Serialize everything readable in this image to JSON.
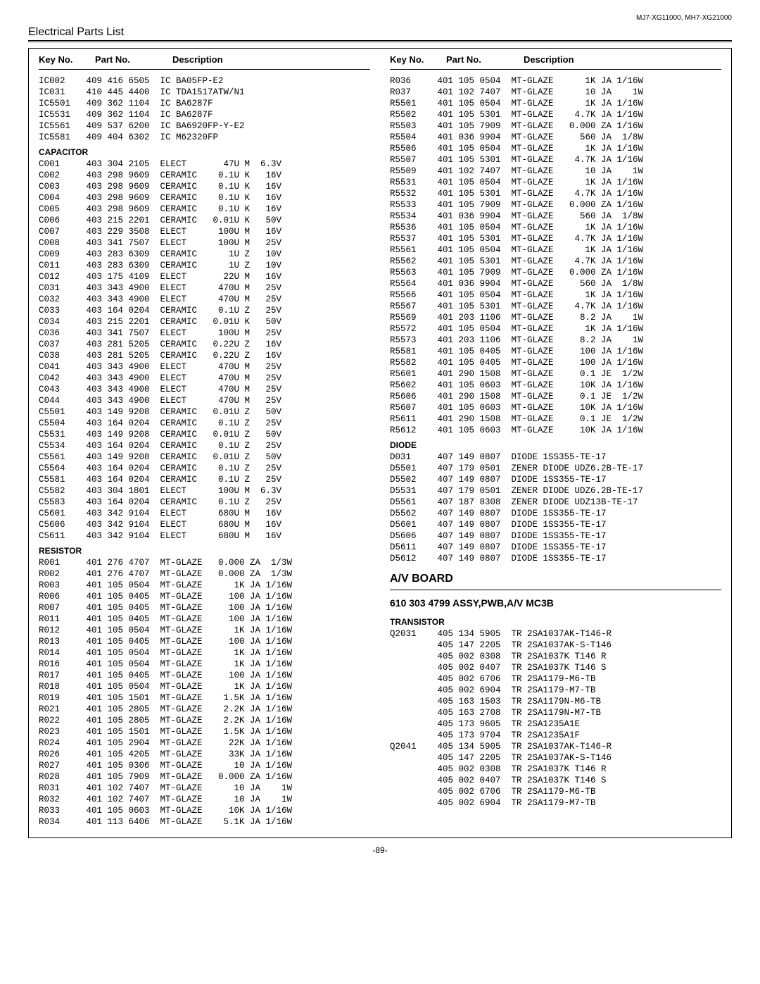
{
  "header_models": "MJ7-XG11000, MH7-XG21000",
  "page_title": "Electrical Parts List",
  "col_headers": {
    "key": "Key No.",
    "part": "Part No.",
    "desc": "Description"
  },
  "left": {
    "top_rows": [
      [
        "IC002",
        "409 416 6505",
        "IC BA05FP-E2"
      ],
      [
        "IC031",
        "410 445 4400",
        "IC TDA1517ATW/N1"
      ],
      [
        "IC5501",
        "409 362 1104",
        "IC BA6287F"
      ],
      [
        "IC5531",
        "409 362 1104",
        "IC BA6287F"
      ],
      [
        "IC5561",
        "409 537 6200",
        "IC BA6920FP-Y-E2"
      ],
      [
        "IC5581",
        "409 404 6302",
        "IC M62320FP"
      ]
    ],
    "cap_label": "CAPACITOR",
    "cap_rows": [
      [
        "C001",
        "403 304 2105",
        "ELECT       47U M  6.3V"
      ],
      [
        "C002",
        "403 298 9609",
        "CERAMIC    0.1U K   16V"
      ],
      [
        "C003",
        "403 298 9609",
        "CERAMIC    0.1U K   16V"
      ],
      [
        "C004",
        "403 298 9609",
        "CERAMIC    0.1U K   16V"
      ],
      [
        "C005",
        "403 298 9609",
        "CERAMIC    0.1U K   16V"
      ],
      [
        "C006",
        "403 215 2201",
        "CERAMIC   0.01U K   50V"
      ],
      [
        "C007",
        "403 229 3508",
        "ELECT      100U M   16V"
      ],
      [
        "C008",
        "403 341 7507",
        "ELECT      100U M   25V"
      ],
      [
        "C009",
        "403 283 6309",
        "CERAMIC      1U Z   10V"
      ],
      [
        "C011",
        "403 283 6309",
        "CERAMIC      1U Z   10V"
      ],
      [
        "C012",
        "403 175 4109",
        "ELECT       22U M   16V"
      ],
      [
        "C031",
        "403 343 4900",
        "ELECT      470U M   25V"
      ],
      [
        "C032",
        "403 343 4900",
        "ELECT      470U M   25V"
      ],
      [
        "C033",
        "403 164 0204",
        "CERAMIC    0.1U Z   25V"
      ],
      [
        "C034",
        "403 215 2201",
        "CERAMIC   0.01U K   50V"
      ],
      [
        "C036",
        "403 341 7507",
        "ELECT      100U M   25V"
      ],
      [
        "C037",
        "403 281 5205",
        "CERAMIC   0.22U Z   16V"
      ],
      [
        "C038",
        "403 281 5205",
        "CERAMIC   0.22U Z   16V"
      ],
      [
        "C041",
        "403 343 4900",
        "ELECT      470U M   25V"
      ],
      [
        "C042",
        "403 343 4900",
        "ELECT      470U M   25V"
      ],
      [
        "C043",
        "403 343 4900",
        "ELECT      470U M   25V"
      ],
      [
        "C044",
        "403 343 4900",
        "ELECT      470U M   25V"
      ],
      [
        "C5501",
        "403 149 9208",
        "CERAMIC   0.01U Z   50V"
      ],
      [
        "C5504",
        "403 164 0204",
        "CERAMIC    0.1U Z   25V"
      ],
      [
        "C5531",
        "403 149 9208",
        "CERAMIC   0.01U Z   50V"
      ],
      [
        "C5534",
        "403 164 0204",
        "CERAMIC    0.1U Z   25V"
      ],
      [
        "C5561",
        "403 149 9208",
        "CERAMIC   0.01U Z   50V"
      ],
      [
        "C5564",
        "403 164 0204",
        "CERAMIC    0.1U Z   25V"
      ],
      [
        "C5581",
        "403 164 0204",
        "CERAMIC    0.1U Z   25V"
      ],
      [
        "C5582",
        "403 304 1801",
        "ELECT      100U M  6.3V"
      ],
      [
        "C5583",
        "403 164 0204",
        "CERAMIC    0.1U Z   25V"
      ],
      [
        "C5601",
        "403 342 9104",
        "ELECT      680U M   16V"
      ],
      [
        "C5606",
        "403 342 9104",
        "ELECT      680U M   16V"
      ],
      [
        "C5611",
        "403 342 9104",
        "ELECT      680U M   16V"
      ]
    ],
    "res_label": "RESISTOR",
    "res_rows": [
      [
        "R001",
        "401 276 4707",
        "MT-GLAZE   0.000 ZA  1/3W"
      ],
      [
        "R002",
        "401 276 4707",
        "MT-GLAZE   0.000 ZA  1/3W"
      ],
      [
        "R003",
        "401 105 0504",
        "MT-GLAZE      1K JA 1/16W"
      ],
      [
        "R006",
        "401 105 0405",
        "MT-GLAZE     100 JA 1/16W"
      ],
      [
        "R007",
        "401 105 0405",
        "MT-GLAZE     100 JA 1/16W"
      ],
      [
        "R011",
        "401 105 0405",
        "MT-GLAZE     100 JA 1/16W"
      ],
      [
        "R012",
        "401 105 0504",
        "MT-GLAZE      1K JA 1/16W"
      ],
      [
        "R013",
        "401 105 0405",
        "MT-GLAZE     100 JA 1/16W"
      ],
      [
        "R014",
        "401 105 0504",
        "MT-GLAZE      1K JA 1/16W"
      ],
      [
        "R016",
        "401 105 0504",
        "MT-GLAZE      1K JA 1/16W"
      ],
      [
        "R017",
        "401 105 0405",
        "MT-GLAZE     100 JA 1/16W"
      ],
      [
        "R018",
        "401 105 0504",
        "MT-GLAZE      1K JA 1/16W"
      ],
      [
        "R019",
        "401 105 1501",
        "MT-GLAZE    1.5K JA 1/16W"
      ],
      [
        "R021",
        "401 105 2805",
        "MT-GLAZE    2.2K JA 1/16W"
      ],
      [
        "R022",
        "401 105 2805",
        "MT-GLAZE    2.2K JA 1/16W"
      ],
      [
        "R023",
        "401 105 1501",
        "MT-GLAZE    1.5K JA 1/16W"
      ],
      [
        "R024",
        "401 105 2904",
        "MT-GLAZE     22K JA 1/16W"
      ],
      [
        "R026",
        "401 105 4205",
        "MT-GLAZE     33K JA 1/16W"
      ],
      [
        "R027",
        "401 105 0306",
        "MT-GLAZE      10 JA 1/16W"
      ],
      [
        "R028",
        "401 105 7909",
        "MT-GLAZE   0.000 ZA 1/16W"
      ],
      [
        "R031",
        "401 102 7407",
        "MT-GLAZE      10 JA    1W"
      ],
      [
        "R032",
        "401 102 7407",
        "MT-GLAZE      10 JA    1W"
      ],
      [
        "R033",
        "401 105 0603",
        "MT-GLAZE     10K JA 1/16W"
      ],
      [
        "R034",
        "401 113 6406",
        "MT-GLAZE    5.1K JA 1/16W"
      ]
    ]
  },
  "right": {
    "res_rows": [
      [
        "R036",
        "401 105 0504",
        "MT-GLAZE      1K JA 1/16W"
      ],
      [
        "R037",
        "401 102 7407",
        "MT-GLAZE      10 JA    1W"
      ],
      [
        "R5501",
        "401 105 0504",
        "MT-GLAZE      1K JA 1/16W"
      ],
      [
        "R5502",
        "401 105 5301",
        "MT-GLAZE    4.7K JA 1/16W"
      ],
      [
        "R5503",
        "401 105 7909",
        "MT-GLAZE   0.000 ZA 1/16W"
      ],
      [
        "R5504",
        "401 036 9904",
        "MT-GLAZE     560 JA  1/8W"
      ],
      [
        "R5506",
        "401 105 0504",
        "MT-GLAZE      1K JA 1/16W"
      ],
      [
        "R5507",
        "401 105 5301",
        "MT-GLAZE    4.7K JA 1/16W"
      ],
      [
        "R5509",
        "401 102 7407",
        "MT-GLAZE      10 JA    1W"
      ],
      [
        "R5531",
        "401 105 0504",
        "MT-GLAZE      1K JA 1/16W"
      ],
      [
        "R5532",
        "401 105 5301",
        "MT-GLAZE    4.7K JA 1/16W"
      ],
      [
        "R5533",
        "401 105 7909",
        "MT-GLAZE   0.000 ZA 1/16W"
      ],
      [
        "R5534",
        "401 036 9904",
        "MT-GLAZE     560 JA  1/8W"
      ],
      [
        "R5536",
        "401 105 0504",
        "MT-GLAZE      1K JA 1/16W"
      ],
      [
        "R5537",
        "401 105 5301",
        "MT-GLAZE    4.7K JA 1/16W"
      ],
      [
        "R5561",
        "401 105 0504",
        "MT-GLAZE      1K JA 1/16W"
      ],
      [
        "R5562",
        "401 105 5301",
        "MT-GLAZE    4.7K JA 1/16W"
      ],
      [
        "R5563",
        "401 105 7909",
        "MT-GLAZE   0.000 ZA 1/16W"
      ],
      [
        "R5564",
        "401 036 9904",
        "MT-GLAZE     560 JA  1/8W"
      ],
      [
        "R5566",
        "401 105 0504",
        "MT-GLAZE      1K JA 1/16W"
      ],
      [
        "R5567",
        "401 105 5301",
        "MT-GLAZE    4.7K JA 1/16W"
      ],
      [
        "R5569",
        "401 203 1106",
        "MT-GLAZE     8.2 JA    1W"
      ],
      [
        "R5572",
        "401 105 0504",
        "MT-GLAZE      1K JA 1/16W"
      ],
      [
        "R5573",
        "401 203 1106",
        "MT-GLAZE     8.2 JA    1W"
      ],
      [
        "R5581",
        "401 105 0405",
        "MT-GLAZE     100 JA 1/16W"
      ],
      [
        "R5582",
        "401 105 0405",
        "MT-GLAZE     100 JA 1/16W"
      ],
      [
        "R5601",
        "401 290 1508",
        "MT-GLAZE     0.1 JE  1/2W"
      ],
      [
        "R5602",
        "401 105 0603",
        "MT-GLAZE     10K JA 1/16W"
      ],
      [
        "R5606",
        "401 290 1508",
        "MT-GLAZE     0.1 JE  1/2W"
      ],
      [
        "R5607",
        "401 105 0603",
        "MT-GLAZE     10K JA 1/16W"
      ],
      [
        "R5611",
        "401 290 1508",
        "MT-GLAZE     0.1 JE  1/2W"
      ],
      [
        "R5612",
        "401 105 0603",
        "MT-GLAZE     10K JA 1/16W"
      ]
    ],
    "diode_label": "DIODE",
    "diode_rows": [
      [
        "D031",
        "407 149 0807",
        "DIODE 1SS355-TE-17"
      ],
      [
        "D5501",
        "407 179 0501",
        "ZENER DIODE UDZ6.2B-TE-17"
      ],
      [
        "D5502",
        "407 149 0807",
        "DIODE 1SS355-TE-17"
      ],
      [
        "D5531",
        "407 179 0501",
        "ZENER DIODE UDZ6.2B-TE-17"
      ],
      [
        "D5561",
        "407 187 8308",
        "ZENER DIODE UDZ13B-TE-17"
      ],
      [
        "D5562",
        "407 149 0807",
        "DIODE 1SS355-TE-17"
      ],
      [
        "D5601",
        "407 149 0807",
        "DIODE 1SS355-TE-17"
      ],
      [
        "D5606",
        "407 149 0807",
        "DIODE 1SS355-TE-17"
      ],
      [
        "D5611",
        "407 149 0807",
        "DIODE 1SS355-TE-17"
      ],
      [
        "D5612",
        "407 149 0807",
        "DIODE 1SS355-TE-17"
      ]
    ],
    "board_title": "A/V BOARD",
    "assy_line": "610 303 4799 ASSY,PWB,A/V MC3B",
    "trans_label": "TRANSISTOR",
    "trans_rows": [
      [
        "Q2031",
        "405 134 5905",
        "TR 2SA1037AK-T146-R"
      ],
      [
        "",
        "405 147 2205",
        "TR 2SA1037AK-S-T146"
      ],
      [
        "",
        "405 002 0308",
        "TR 2SA1037K T146 R"
      ],
      [
        "",
        "405 002 0407",
        "TR 2SA1037K T146 S"
      ],
      [
        "",
        "405 002 6706",
        "TR 2SA1179-M6-TB"
      ],
      [
        "",
        "405 002 6904",
        "TR 2SA1179-M7-TB"
      ],
      [
        "",
        "405 163 1503",
        "TR 2SA1179N-M6-TB"
      ],
      [
        "",
        "405 163 2708",
        "TR 2SA1179N-M7-TB"
      ],
      [
        "",
        "405 173 9605",
        "TR 2SA1235A1E"
      ],
      [
        "",
        "405 173 9704",
        "TR 2SA1235A1F"
      ],
      [
        "Q2041",
        "405 134 5905",
        "TR 2SA1037AK-T146-R"
      ],
      [
        "",
        "405 147 2205",
        "TR 2SA1037AK-S-T146"
      ],
      [
        "",
        "405 002 0308",
        "TR 2SA1037K T146 R"
      ],
      [
        "",
        "405 002 0407",
        "TR 2SA1037K T146 S"
      ],
      [
        "",
        "405 002 6706",
        "TR 2SA1179-M6-TB"
      ],
      [
        "",
        "405 002 6904",
        "TR 2SA1179-M7-TB"
      ]
    ]
  },
  "page_number": "-89-"
}
